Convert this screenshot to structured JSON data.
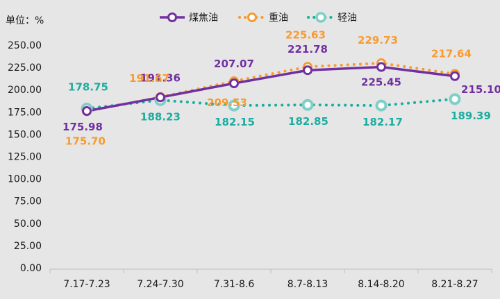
{
  "chart_data": {
    "type": "line",
    "unit_label": "单位：%",
    "categories": [
      "7.17-7.23",
      "7.24-7.30",
      "7.31-8.6",
      "8.7-8.13",
      "8.14-8.20",
      "8.21-8.27"
    ],
    "ylim": [
      0,
      250
    ],
    "yticks": [
      "0.00",
      "25.00",
      "50.00",
      "75.00",
      "100.00",
      "125.00",
      "150.00",
      "175.00",
      "200.00",
      "225.00",
      "250.00"
    ],
    "grid": false,
    "legend": "top",
    "series": [
      {
        "name": "煤焦油",
        "color": "#7030a0",
        "style": "solid",
        "values": [
          175.98,
          191.36,
          207.07,
          221.78,
          225.45,
          215.1
        ],
        "labels": [
          "175.98",
          "191.36",
          "207.07",
          "221.78",
          "225.45",
          "215.10"
        ]
      },
      {
        "name": "重油",
        "color": "#f79b30",
        "style": "dotted",
        "values": [
          175.7,
          191.67,
          209.53,
          225.63,
          229.73,
          217.64
        ],
        "labels": [
          "175.70",
          "191.67",
          "209.53",
          "225.63",
          "229.73",
          "217.64"
        ]
      },
      {
        "name": "轻油",
        "color": "#1aaea0",
        "style": "dotted",
        "values": [
          178.75,
          188.23,
          182.15,
          182.85,
          182.17,
          189.39
        ],
        "labels": [
          "178.75",
          "188.23",
          "182.15",
          "182.85",
          "182.17",
          "189.39"
        ]
      }
    ]
  }
}
